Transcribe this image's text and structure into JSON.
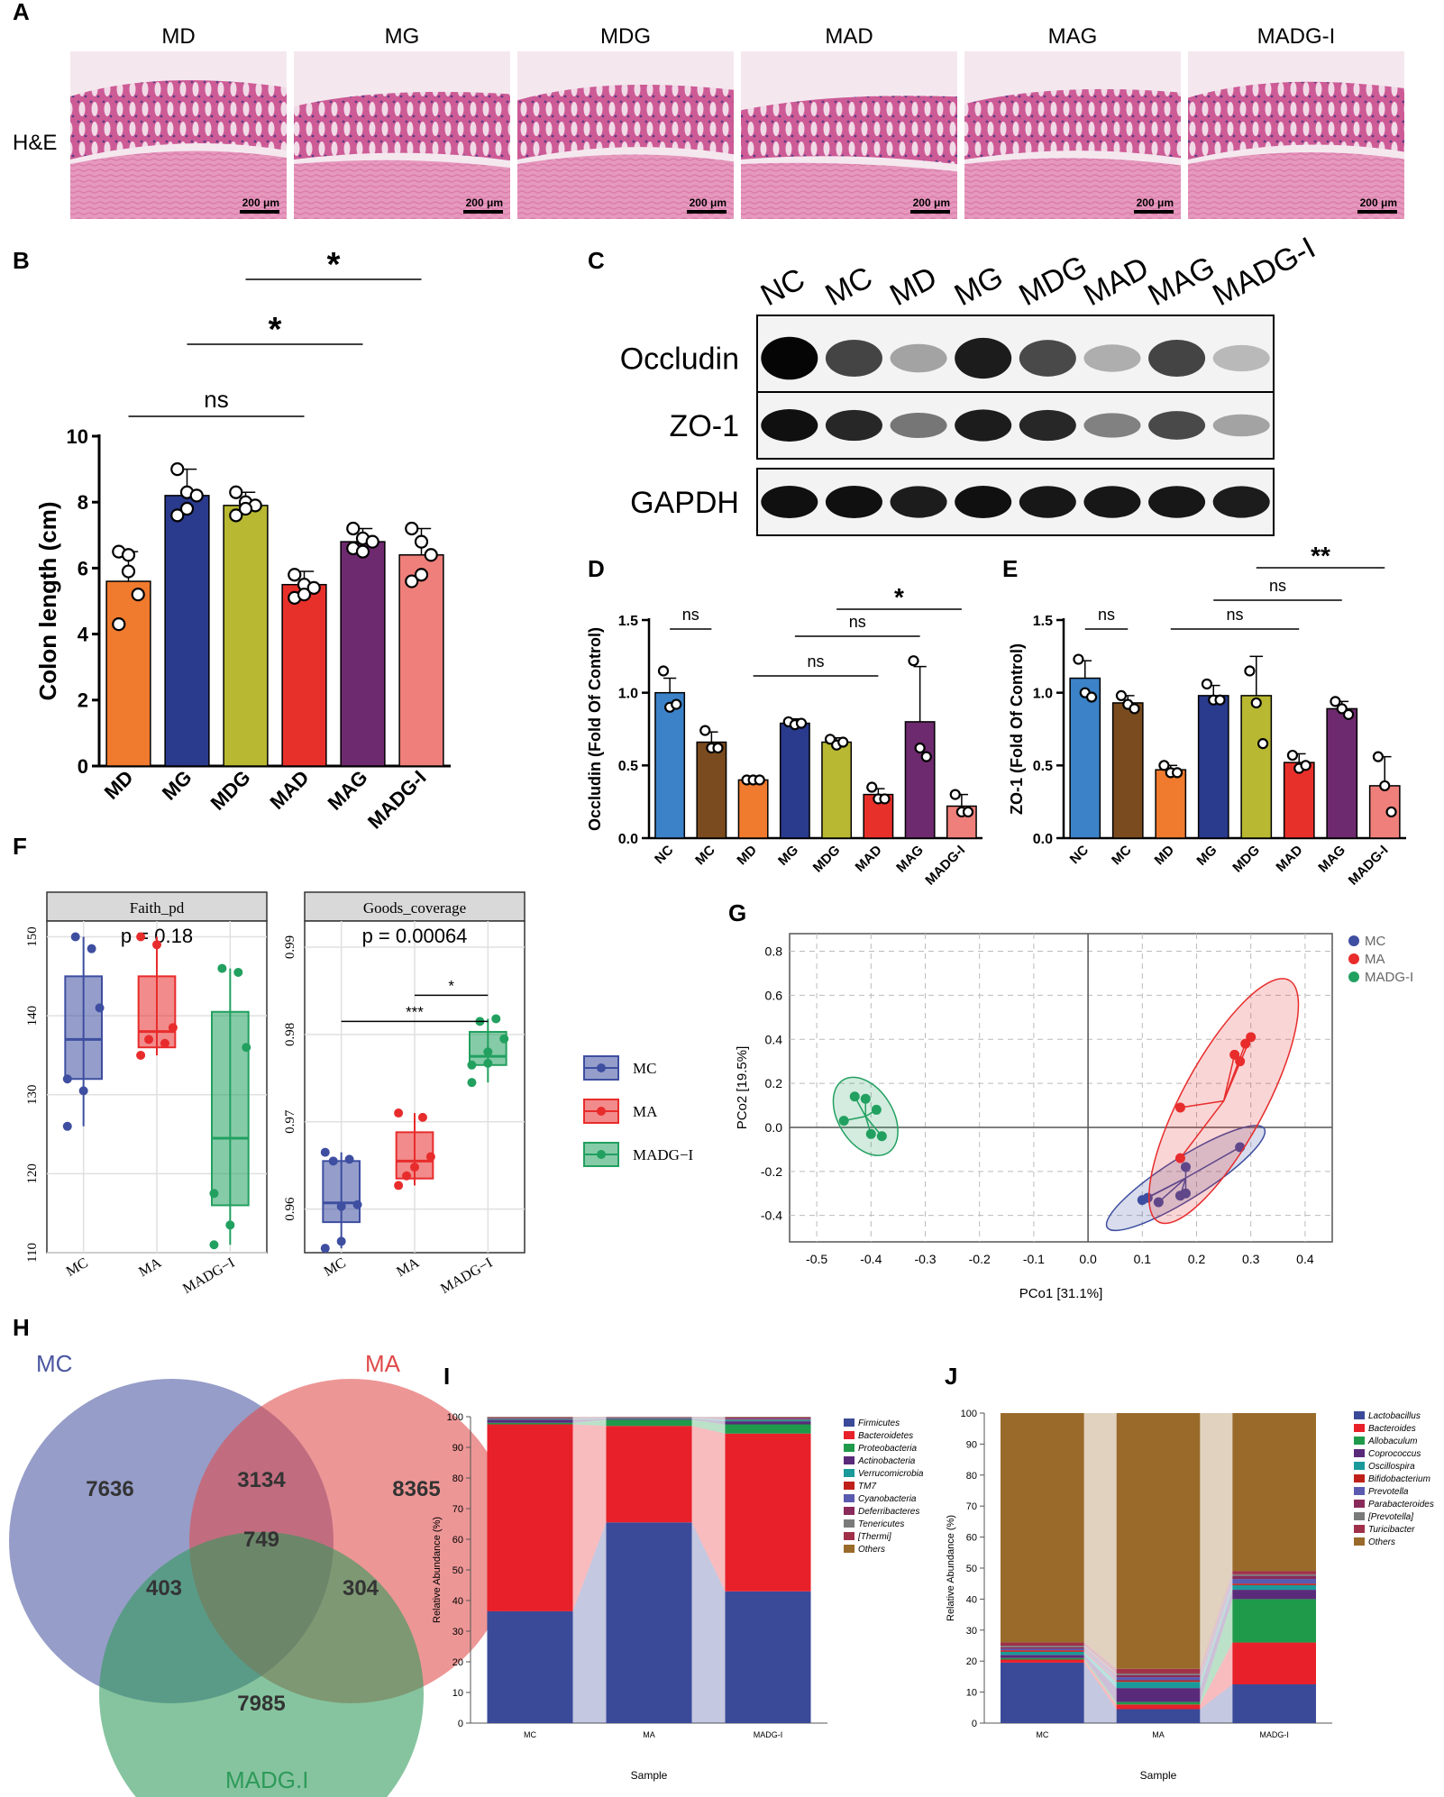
{
  "panel_labels": [
    "A",
    "B",
    "C",
    "D",
    "E",
    "F",
    "G",
    "H",
    "I",
    "J"
  ],
  "colors": {
    "NC": "#3b82c8",
    "MC": "#7a4b1e",
    "MD": "#f07a2d",
    "MG": "#2a3a8c",
    "MDG": "#b8b832",
    "MAD": "#e8302a",
    "MAG": "#6e2a6e",
    "MADG-I": "#ef7f7a",
    "hist_bg": "#f4e8ee",
    "hist_tissue": "#d9538f",
    "hist_muscle": "#e89bb8"
  },
  "panel_a": {
    "row_label": "H&E",
    "groups": [
      "MD",
      "MG",
      "MDG",
      "MAD",
      "MAG",
      "MADG-I"
    ],
    "scale": "200 μm"
  },
  "chart_data": [
    {
      "panel": "B",
      "type": "bar",
      "ylabel": "Colon length (cm)",
      "ylim": [
        0,
        10
      ],
      "yticks": [
        0,
        2,
        4,
        6,
        8,
        10
      ],
      "categories": [
        "MD",
        "MG",
        "MDG",
        "MAD",
        "MAG",
        "MADG-I"
      ],
      "values": [
        5.6,
        8.2,
        7.9,
        5.5,
        6.8,
        6.4
      ],
      "errors": [
        0.9,
        0.8,
        0.4,
        0.4,
        0.4,
        0.8
      ],
      "points": [
        [
          6.5,
          5.9,
          5.2,
          4.3,
          6.4
        ],
        [
          9.0,
          8.3,
          8.2,
          7.6,
          7.8
        ],
        [
          8.3,
          8.0,
          7.9,
          7.6,
          7.8
        ],
        [
          5.8,
          5.5,
          5.4,
          5.1,
          5.2
        ],
        [
          7.2,
          6.9,
          6.8,
          6.6,
          6.5
        ],
        [
          7.2,
          6.8,
          6.4,
          5.6,
          5.8
        ]
      ],
      "brackets": [
        {
          "from": 0,
          "to": 3,
          "label": "ns"
        },
        {
          "from": 1,
          "to": 4,
          "label": "*"
        },
        {
          "from": 2,
          "to": 5,
          "label": "*"
        }
      ]
    },
    {
      "panel": "C",
      "type": "blot",
      "lanes": [
        "NC",
        "MC",
        "MD",
        "MG",
        "MDG",
        "MAD",
        "MAG",
        "MADG-I"
      ],
      "rows": [
        {
          "name": "Occludin",
          "intensity": [
            1.0,
            0.72,
            0.3,
            0.9,
            0.7,
            0.25,
            0.72,
            0.2
          ]
        },
        {
          "name": "ZO-1",
          "intensity": [
            0.95,
            0.85,
            0.5,
            0.9,
            0.85,
            0.45,
            0.7,
            0.3
          ]
        },
        {
          "name": "GAPDH",
          "intensity": [
            0.95,
            0.95,
            0.9,
            0.95,
            0.92,
            0.92,
            0.92,
            0.9
          ]
        }
      ]
    },
    {
      "panel": "D",
      "type": "bar",
      "ylabel": "Occludin (Fold Of Control)",
      "ylim": [
        0,
        1.5
      ],
      "yticks": [
        "0.0",
        "0.5",
        "1.0",
        "1.5"
      ],
      "categories": [
        "NC",
        "MC",
        "MD",
        "MG",
        "MDG",
        "MAD",
        "MAG",
        "MADG-I"
      ],
      "values": [
        1.0,
        0.66,
        0.4,
        0.79,
        0.66,
        0.3,
        0.8,
        0.22
      ],
      "errors": [
        0.1,
        0.07,
        0.01,
        0.03,
        0.03,
        0.04,
        0.38,
        0.08
      ],
      "points": [
        [
          1.15,
          0.9,
          0.92
        ],
        [
          0.74,
          0.62,
          0.62
        ],
        [
          0.4,
          0.4,
          0.4
        ],
        [
          0.8,
          0.78,
          0.79
        ],
        [
          0.68,
          0.64,
          0.66
        ],
        [
          0.35,
          0.27,
          0.27
        ],
        [
          1.22,
          0.62,
          0.56
        ],
        [
          0.3,
          0.18,
          0.18
        ]
      ],
      "brackets": [
        {
          "from": 0,
          "to": 1,
          "label": "ns"
        },
        {
          "from": 2,
          "to": 5,
          "label": "ns"
        },
        {
          "from": 3,
          "to": 6,
          "label": "ns"
        },
        {
          "from": 4,
          "to": 7,
          "label": "*"
        }
      ]
    },
    {
      "panel": "E",
      "type": "bar",
      "ylabel": "ZO-1 (Fold Of Control)",
      "ylim": [
        0,
        1.5
      ],
      "yticks": [
        "0.0",
        "0.5",
        "1.0",
        "1.5"
      ],
      "categories": [
        "NC",
        "MC",
        "MD",
        "MG",
        "MDG",
        "MAD",
        "MAG",
        "MADG-I"
      ],
      "values": [
        1.1,
        0.93,
        0.47,
        0.98,
        0.98,
        0.52,
        0.89,
        0.36
      ],
      "errors": [
        0.12,
        0.05,
        0.03,
        0.07,
        0.27,
        0.06,
        0.05,
        0.2
      ],
      "points": [
        [
          1.23,
          1.0,
          0.97
        ],
        [
          0.98,
          0.92,
          0.89
        ],
        [
          0.5,
          0.45,
          0.45
        ],
        [
          1.06,
          0.95,
          0.95
        ],
        [
          1.15,
          0.93,
          0.65
        ],
        [
          0.57,
          0.48,
          0.5
        ],
        [
          0.94,
          0.89,
          0.85
        ],
        [
          0.56,
          0.36,
          0.18
        ]
      ],
      "brackets": [
        {
          "from": 0,
          "to": 1,
          "label": "ns"
        },
        {
          "from": 2,
          "to": 5,
          "label": "ns"
        },
        {
          "from": 3,
          "to": 6,
          "label": "ns"
        },
        {
          "from": 4,
          "to": 7,
          "label": "**"
        }
      ]
    },
    {
      "panel": "F",
      "type": "box",
      "legend": [
        "MC",
        "MA",
        "MADG−I"
      ],
      "legend_colors": [
        "#3e4ea0",
        "#e82c2c",
        "#22a060"
      ],
      "facets": [
        {
          "title": "Faith_pd",
          "p_text": "p = 0.18",
          "ylim": [
            110,
            152
          ],
          "yticks": [
            "110",
            "120",
            "130",
            "140",
            "150"
          ],
          "groups": [
            "MC",
            "MA",
            "MADG−I"
          ],
          "boxes": [
            {
              "q1": 132,
              "med": 137,
              "q3": 145,
              "min": 126,
              "max": 150
            },
            {
              "q1": 136,
              "med": 138,
              "q3": 145,
              "min": 135,
              "max": 150
            },
            {
              "q1": 116,
              "med": 124.5,
              "q3": 140.5,
              "min": 111,
              "max": 146
            }
          ],
          "points": [
            [
              126,
              130.5,
              141,
              150,
              148.5,
              132
            ],
            [
              150,
              149,
              138.5,
              137,
              136.5,
              135
            ],
            [
              117.5,
              113.5,
              136,
              146,
              145.5,
              111
            ]
          ],
          "sig": []
        },
        {
          "title": "Goods_coverage",
          "p_text": "p = 0.00064",
          "ylim": [
            0.955,
            0.993
          ],
          "yticks": [
            "0.96",
            "0.97",
            "0.98",
            "0.99"
          ],
          "groups": [
            "MC",
            "MA",
            "MADG−I"
          ],
          "boxes": [
            {
              "q1": 0.9585,
              "med": 0.9607,
              "q3": 0.9655,
              "min": 0.9555,
              "max": 0.9665
            },
            {
              "q1": 0.9635,
              "med": 0.9655,
              "q3": 0.9688,
              "min": 0.9627,
              "max": 0.971
            },
            {
              "q1": 0.9765,
              "med": 0.9775,
              "q3": 0.9803,
              "min": 0.9745,
              "max": 0.9818
            }
          ],
          "points": [
            [
              0.9555,
              0.9603,
              0.9605,
              0.9655,
              0.9657,
              0.9665,
              0.9563
            ],
            [
              0.9627,
              0.9648,
              0.966,
              0.9638,
              0.9705,
              0.971
            ],
            [
              0.9765,
              0.978,
              0.9795,
              0.9815,
              0.9818,
              0.9745,
              0.9767
            ]
          ],
          "sig": [
            {
              "from": 1,
              "to": 2,
              "label": "*",
              "y": 0.9845
            },
            {
              "from": 0,
              "to": 2,
              "label": "***",
              "y": 0.9815
            }
          ]
        }
      ]
    },
    {
      "panel": "G",
      "type": "scatter",
      "xlabel": "PCo1 [31.1%]",
      "ylabel": "PCo2 [19.5%]",
      "xlim": [
        -0.55,
        0.45
      ],
      "ylim": [
        -0.52,
        0.88
      ],
      "xticks": [
        "-0.5",
        "-0.4",
        "-0.3",
        "-0.2",
        "-0.1",
        "0.0",
        "0.1",
        "0.2",
        "0.3",
        "0.4"
      ],
      "yticks": [
        "-0.4",
        "-0.2",
        "0.0",
        "0.2",
        "0.4",
        "0.6",
        "0.8"
      ],
      "legend": [
        "MC",
        "MA",
        "MADG-I"
      ],
      "series": [
        {
          "name": "MC",
          "color": "#3e4ea0",
          "centroid": [
            0.18,
            -0.23
          ],
          "points": [
            [
              0.1,
              -0.33
            ],
            [
              0.11,
              -0.32
            ],
            [
              0.13,
              -0.34
            ],
            [
              0.17,
              -0.31
            ],
            [
              0.18,
              -0.3
            ],
            [
              0.18,
              -0.18
            ],
            [
              0.28,
              -0.09
            ]
          ]
        },
        {
          "name": "MA",
          "color": "#e82c2c",
          "centroid": [
            0.25,
            0.12
          ],
          "points": [
            [
              0.17,
              0.09
            ],
            [
              0.17,
              -0.14
            ],
            [
              0.27,
              0.33
            ],
            [
              0.28,
              0.3
            ],
            [
              0.3,
              0.41
            ],
            [
              0.29,
              0.38
            ]
          ]
        },
        {
          "name": "MADG-I",
          "color": "#22a060",
          "centroid": [
            -0.41,
            0.05
          ],
          "points": [
            [
              -0.43,
              0.14
            ],
            [
              -0.45,
              0.03
            ],
            [
              -0.41,
              0.13
            ],
            [
              -0.39,
              0.08
            ],
            [
              -0.4,
              -0.03
            ],
            [
              -0.38,
              -0.04
            ]
          ]
        }
      ]
    },
    {
      "panel": "H",
      "type": "venn",
      "sets": [
        "MC",
        "MA",
        "MADG.I"
      ],
      "set_colors": [
        "#4a56a0",
        "#e04a4a",
        "#2e9a5a"
      ],
      "regions": {
        "MC_only": "7636",
        "MA_only": "8365",
        "MADG_only": "7985",
        "MC_MA": "3134",
        "MC_MADG": "403",
        "MA_MADG": "304",
        "all": "749"
      }
    },
    {
      "panel": "I",
      "type": "stacked_bar",
      "xlabel": "Sample",
      "ylabel": "Relative Abundance (%)",
      "ylim": [
        0,
        100
      ],
      "yticks": [
        "0",
        "10",
        "20",
        "30",
        "40",
        "50",
        "60",
        "70",
        "80",
        "90",
        "100"
      ],
      "categories": [
        "MC",
        "MA",
        "MADG-I"
      ],
      "series": [
        {
          "name": "Firmicutes",
          "color": "#3a4a98",
          "values": [
            36.5,
            65.5,
            43
          ]
        },
        {
          "name": "Bacteroidetes",
          "color": "#e8202a",
          "values": [
            61,
            31.5,
            51.5
          ]
        },
        {
          "name": "Proteobacteria",
          "color": "#1e9a4a",
          "values": [
            0.5,
            2,
            3
          ]
        },
        {
          "name": "Actinobacteria",
          "color": "#5a2a7a",
          "values": [
            1,
            0.3,
            1
          ]
        },
        {
          "name": "Verrucomicrobia",
          "color": "#1a9a9a",
          "values": [
            0.3,
            0.2,
            0.5
          ]
        },
        {
          "name": "TM7",
          "color": "#c0201a",
          "values": [
            0.1,
            0.1,
            0.2
          ]
        },
        {
          "name": "Cyanobacteria",
          "color": "#5a5ab0",
          "values": [
            0.1,
            0.1,
            0.2
          ]
        },
        {
          "name": "Deferribacteres",
          "color": "#8a2a5a",
          "values": [
            0.2,
            0.1,
            0.3
          ]
        },
        {
          "name": "Tenericutes",
          "color": "#7a7a7a",
          "values": [
            0.1,
            0.1,
            0.1
          ]
        },
        {
          "name": "[Thermi]",
          "color": "#a0304a",
          "values": [
            0.1,
            0.05,
            0.1
          ]
        },
        {
          "name": "Others",
          "color": "#9a6a2a",
          "values": [
            0.1,
            0.05,
            0.1
          ]
        }
      ]
    },
    {
      "panel": "J",
      "type": "stacked_bar",
      "xlabel": "Sample",
      "ylabel": "Relative Abundance (%)",
      "ylim": [
        0,
        100
      ],
      "yticks": [
        "0",
        "10",
        "20",
        "30",
        "40",
        "50",
        "60",
        "70",
        "80",
        "90",
        "100"
      ],
      "categories": [
        "MC",
        "MA",
        "MADG-I"
      ],
      "series": [
        {
          "name": "Lactobacillus",
          "color": "#3a4a98",
          "values": [
            19.5,
            4.5,
            12.5
          ]
        },
        {
          "name": "Bacteroides",
          "color": "#e8202a",
          "values": [
            1,
            1.5,
            13.5
          ]
        },
        {
          "name": "Allobaculum",
          "color": "#1e9a4a",
          "values": [
            0.5,
            0.8,
            14
          ]
        },
        {
          "name": "Coprococcus",
          "color": "#5a2a7a",
          "values": [
            1,
            4.5,
            3
          ]
        },
        {
          "name": "Oscillospira",
          "color": "#1a9a9a",
          "values": [
            1,
            2,
            1.5
          ]
        },
        {
          "name": "Bifidobacterium",
          "color": "#c0201a",
          "values": [
            0.5,
            0.5,
            0.5
          ]
        },
        {
          "name": "Prevotella",
          "color": "#5a5ab0",
          "values": [
            0.5,
            1,
            1.5
          ]
        },
        {
          "name": "Parabacteroides",
          "color": "#8a2a5a",
          "values": [
            0.5,
            0.7,
            1
          ]
        },
        {
          "name": "[Prevotella]",
          "color": "#7a7a7a",
          "values": [
            0.5,
            0.5,
            0.5
          ]
        },
        {
          "name": "Turicibacter",
          "color": "#a0304a",
          "values": [
            1,
            1.5,
            1
          ]
        },
        {
          "name": "Others",
          "color": "#9a6a2a",
          "values": [
            74,
            82.5,
            51
          ]
        }
      ]
    }
  ]
}
